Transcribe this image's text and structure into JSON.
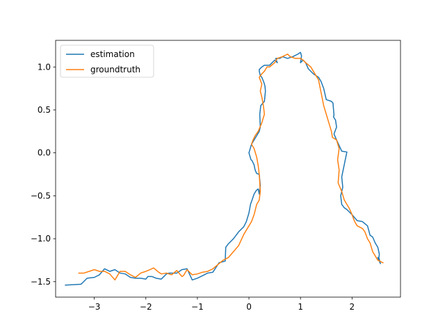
{
  "chart_data": {
    "type": "line",
    "title": "",
    "xlabel": "",
    "ylabel": "",
    "xlim": [
      -3.75,
      2.94
    ],
    "ylim": [
      -1.68,
      1.31
    ],
    "xticks": [
      -3,
      -2,
      -1,
      0,
      1,
      2
    ],
    "yticks": [
      -1.5,
      -1.0,
      -0.5,
      0.0,
      0.5,
      1.0
    ],
    "xtick_labels": [
      "−3",
      "−2",
      "−1",
      "0",
      "1",
      "2"
    ],
    "ytick_labels": [
      "−1.5",
      "−1.0",
      "−0.5",
      "0.0",
      "0.5",
      "1.0"
    ],
    "grid": false,
    "legend_position": "top-left",
    "series": [
      {
        "name": "estimation",
        "color": "#1f77b4",
        "x": [
          -3.56,
          -3.26,
          -3.24,
          -3.14,
          -3.0,
          -2.9,
          -2.8,
          -2.7,
          -2.6,
          -2.5,
          -2.4,
          -2.3,
          -2.2,
          -2.1,
          -2.0,
          -1.96,
          -1.88,
          -1.8,
          -1.7,
          -1.6,
          -1.55,
          -1.4,
          -1.3,
          -1.2,
          -1.1,
          -1.0,
          -0.9,
          -0.8,
          -0.7,
          -0.58,
          -0.46,
          -0.45,
          -0.4,
          -0.3,
          -0.2,
          -0.1,
          -0.05,
          0.0,
          0.03,
          0.06,
          0.1,
          0.14,
          0.18,
          0.2,
          0.22,
          0.2,
          0.15,
          0.12,
          0.1,
          0.06,
          0.04,
          0.0,
          0.05,
          0.1,
          0.15,
          0.2,
          0.22,
          0.21,
          0.23,
          0.3,
          0.32,
          0.31,
          0.29,
          0.27,
          0.25,
          0.22,
          0.2,
          0.2,
          0.25,
          0.3,
          0.4,
          0.45,
          0.5,
          0.55,
          0.52,
          0.6,
          0.65,
          0.75,
          0.85,
          0.95,
          1.0,
          1.02,
          1.0,
          1.05,
          1.1,
          1.15,
          1.25,
          1.35,
          1.4,
          1.45,
          1.5,
          1.6,
          1.63,
          1.65,
          1.64,
          1.68,
          1.7,
          1.65,
          1.7,
          1.8,
          1.9,
          1.8,
          1.82,
          1.78,
          1.8,
          1.85,
          1.9,
          2.0,
          2.1,
          2.2,
          2.3,
          2.35,
          2.4,
          2.45,
          2.5,
          2.53,
          2.52,
          2.55,
          2.5
        ],
        "y": [
          -1.54,
          -1.53,
          -1.52,
          -1.46,
          -1.45,
          -1.42,
          -1.35,
          -1.38,
          -1.36,
          -1.4,
          -1.41,
          -1.45,
          -1.46,
          -1.46,
          -1.47,
          -1.44,
          -1.44,
          -1.46,
          -1.47,
          -1.41,
          -1.4,
          -1.4,
          -1.36,
          -1.35,
          -1.48,
          -1.46,
          -1.43,
          -1.4,
          -1.39,
          -1.28,
          -1.26,
          -1.1,
          -1.06,
          -1.0,
          -0.92,
          -0.86,
          -0.8,
          -0.7,
          -0.6,
          -0.55,
          -0.48,
          -0.44,
          -0.42,
          -0.48,
          -0.38,
          -0.25,
          -0.24,
          -0.2,
          -0.14,
          -0.09,
          -0.08,
          0.0,
          0.1,
          0.15,
          0.2,
          0.25,
          0.3,
          0.45,
          0.55,
          0.6,
          0.72,
          0.78,
          0.82,
          0.85,
          0.88,
          0.9,
          0.95,
          0.97,
          1.0,
          1.02,
          1.02,
          1.05,
          1.08,
          1.05,
          1.1,
          1.1,
          1.12,
          1.1,
          1.12,
          1.15,
          1.17,
          1.13,
          1.05,
          1.08,
          1.05,
          0.98,
          0.92,
          0.88,
          0.83,
          0.75,
          0.62,
          0.6,
          0.58,
          0.44,
          0.42,
          0.38,
          0.3,
          0.22,
          0.15,
          0.02,
          0.01,
          -0.28,
          -0.4,
          -0.5,
          -0.6,
          -0.64,
          -0.66,
          -0.72,
          -0.79,
          -0.8,
          -0.85,
          -0.96,
          -0.98,
          -1.05,
          -1.1,
          -1.18,
          -1.22,
          -1.29,
          -1.22
        ]
      },
      {
        "name": "groundtruth",
        "color": "#ff7f0e",
        "x": [
          -3.3,
          -3.2,
          -3.1,
          -3.0,
          -2.9,
          -2.8,
          -2.7,
          -2.6,
          -2.5,
          -2.4,
          -2.3,
          -2.2,
          -2.1,
          -2.0,
          -1.92,
          -1.85,
          -1.75,
          -1.7,
          -1.6,
          -1.5,
          -1.4,
          -1.3,
          -1.27,
          -1.2,
          -1.1,
          -1.0,
          -0.9,
          -0.8,
          -0.7,
          -0.6,
          -0.5,
          -0.4,
          -0.3,
          -0.2,
          -0.1,
          0.0,
          0.05,
          0.1,
          0.15,
          0.2,
          0.22,
          0.21,
          0.2,
          0.18,
          0.15,
          0.1,
          0.05,
          0.08,
          0.12,
          0.18,
          0.25,
          0.3,
          0.28,
          0.25,
          0.22,
          0.25,
          0.2,
          0.25,
          0.3,
          0.35,
          0.4,
          0.5,
          0.55,
          0.65,
          0.75,
          0.8,
          0.9,
          1.0,
          1.05,
          1.1,
          1.2,
          1.25,
          1.3,
          1.35,
          1.4,
          1.45,
          1.5,
          1.55,
          1.6,
          1.62,
          1.7,
          1.75,
          1.72,
          1.75,
          1.73,
          1.8,
          1.85,
          1.9,
          1.95,
          2.0,
          2.05,
          2.1,
          2.2,
          2.25,
          2.3,
          2.35,
          2.4,
          2.5,
          2.6
        ],
        "y": [
          -1.4,
          -1.4,
          -1.38,
          -1.36,
          -1.38,
          -1.38,
          -1.41,
          -1.48,
          -1.38,
          -1.38,
          -1.42,
          -1.45,
          -1.4,
          -1.38,
          -1.36,
          -1.34,
          -1.39,
          -1.41,
          -1.4,
          -1.42,
          -1.37,
          -1.44,
          -1.43,
          -1.36,
          -1.42,
          -1.41,
          -1.39,
          -1.38,
          -1.35,
          -1.3,
          -1.25,
          -1.22,
          -1.15,
          -1.08,
          -0.95,
          -0.85,
          -0.8,
          -0.72,
          -0.6,
          -0.55,
          -0.45,
          -0.35,
          -0.25,
          -0.15,
          -0.05,
          0.05,
          0.1,
          0.15,
          0.2,
          0.25,
          0.35,
          0.45,
          0.55,
          0.65,
          0.72,
          0.8,
          0.88,
          0.92,
          0.95,
          1.0,
          1.0,
          1.05,
          1.1,
          1.12,
          1.15,
          1.12,
          1.1,
          1.1,
          1.08,
          1.05,
          1.0,
          0.95,
          0.9,
          0.85,
          0.7,
          0.55,
          0.45,
          0.35,
          0.25,
          0.18,
          0.15,
          0.05,
          -0.08,
          -0.2,
          -0.35,
          -0.45,
          -0.55,
          -0.6,
          -0.65,
          -0.72,
          -0.8,
          -0.85,
          -0.88,
          -0.92,
          -1.0,
          -1.05,
          -1.15,
          -1.25,
          -1.28
        ]
      }
    ]
  }
}
